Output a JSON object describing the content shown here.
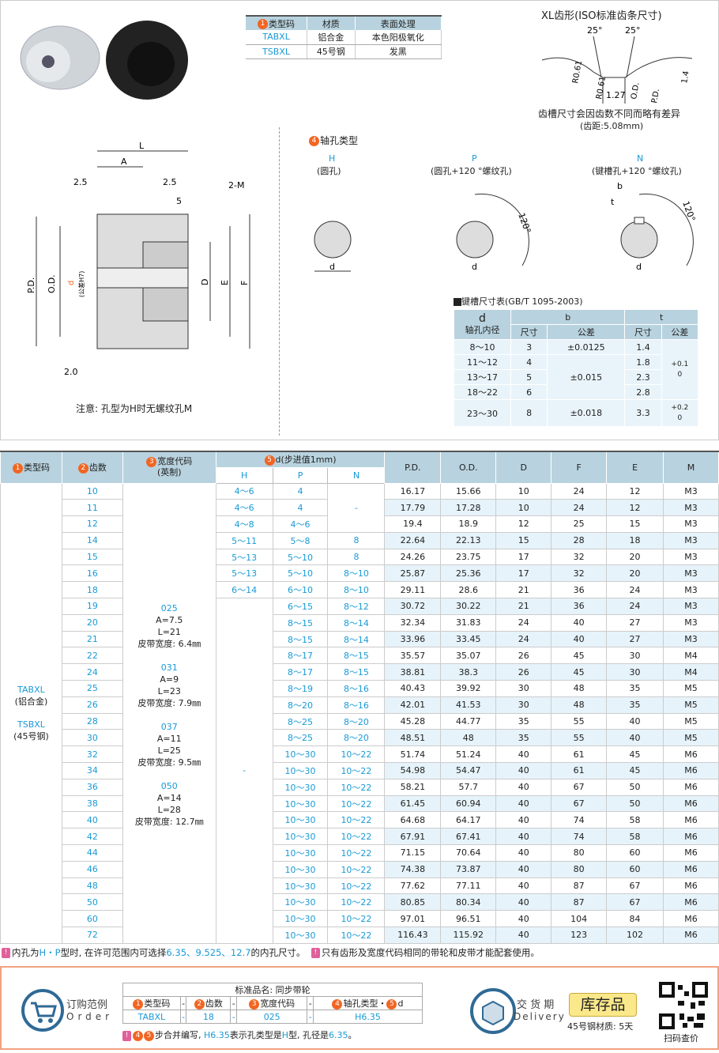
{
  "materials": {
    "headers": [
      "类型码",
      "材质",
      "表面处理"
    ],
    "rows": [
      [
        "TABXL",
        "铝合金",
        "本色阳极氧化"
      ],
      [
        "TSBXL",
        "45号钢",
        "发黑"
      ]
    ]
  },
  "tooth": {
    "title": "XL齿形(ISO标准齿条尺寸)",
    "angle1": "25°",
    "angle2": "25°",
    "r1": "R0.61",
    "r2": "R0.61",
    "w": "1.27",
    "od": "O.D.",
    "pd": "P.D.",
    "h": "1.4",
    "note1": "齿槽尺寸会因齿数不同而略有差异",
    "note2": "(齿距:5.08mm)"
  },
  "drawing": {
    "L": "L",
    "A": "A",
    "d1": "2.5",
    "d2": "2.5",
    "d3": "5",
    "m": "2-M",
    "pd": "P.D.",
    "od": "O.D.",
    "d": "d",
    "tol": "(公差H7)",
    "D": "D",
    "E": "E",
    "F": "F",
    "r": "2.0",
    "note": "注意: 孔型为H时无螺纹孔M"
  },
  "bore": {
    "title": "轴孔类型",
    "types": [
      {
        "code": "H",
        "desc": "(圆孔)"
      },
      {
        "code": "P",
        "desc": "(圆孔+120 °螺纹孔)"
      },
      {
        "code": "N",
        "desc": "(键槽孔+120 °螺纹孔)"
      }
    ],
    "angle": "120°",
    "d": "d",
    "b": "b",
    "t": "t"
  },
  "keyway": {
    "title": "键槽尺寸表(GB/T 1095-2003)",
    "h_d": "d",
    "h_d2": "轴孔内径",
    "h_b": "b",
    "h_t": "t",
    "h_size": "尺寸",
    "h_tol": "公差",
    "rows": [
      [
        "8～10",
        "3",
        "±0.0125",
        "1.4"
      ],
      [
        "11～12",
        "4",
        "",
        "1.8"
      ],
      [
        "13～17",
        "5",
        "±0.015",
        "2.3"
      ],
      [
        "18～22",
        "6",
        "",
        "2.8"
      ],
      [
        "23～30",
        "8",
        "±0.018",
        "3.3"
      ]
    ],
    "b_tol_mid": "±0.015",
    "t_tol1a": "+0.1",
    "t_tol1b": "0",
    "t_tol2a": "+0.2",
    "t_tol2b": "0"
  },
  "table": {
    "headers": {
      "type": "类型码",
      "teeth": "齿数",
      "width": "宽度代码",
      "width2": "(英制)",
      "d": "d(步进值1mm)",
      "H": "H",
      "P": "P",
      "N": "N",
      "pd": "P.D.",
      "od": "O.D.",
      "D": "D",
      "F": "F",
      "E": "E",
      "M": "M"
    },
    "type_text": [
      "TABXL",
      "(铝合金)",
      "TSBXL",
      "(45号钢)"
    ],
    "width_blocks": [
      [
        "025",
        "A=7.5",
        "L=21",
        "皮带宽度: 6.4㎜"
      ],
      [
        "031",
        "A=9",
        "L=23",
        "皮带宽度: 7.9㎜"
      ],
      [
        "037",
        "A=11",
        "L=25",
        "皮带宽度: 9.5㎜"
      ],
      [
        "050",
        "A=14",
        "L=28",
        "皮带宽度: 12.7㎜"
      ]
    ],
    "dash": "-",
    "rows": [
      [
        "10",
        "4～6",
        "4",
        "",
        "16.17",
        "15.66",
        "10",
        "24",
        "12",
        "M3"
      ],
      [
        "11",
        "4～6",
        "4",
        "",
        "17.79",
        "17.28",
        "10",
        "24",
        "12",
        "M3"
      ],
      [
        "12",
        "4～8",
        "4～6",
        "",
        "19.4",
        "18.9",
        "12",
        "25",
        "15",
        "M3"
      ],
      [
        "14",
        "5～11",
        "5～8",
        "8",
        "22.64",
        "22.13",
        "15",
        "28",
        "18",
        "M3"
      ],
      [
        "15",
        "5～13",
        "5～10",
        "8",
        "24.26",
        "23.75",
        "17",
        "32",
        "20",
        "M3"
      ],
      [
        "16",
        "5～13",
        "5～10",
        "8～10",
        "25.87",
        "25.36",
        "17",
        "32",
        "20",
        "M3"
      ],
      [
        "18",
        "6～14",
        "6～10",
        "8～10",
        "29.11",
        "28.6",
        "21",
        "36",
        "24",
        "M3"
      ],
      [
        "19",
        "",
        "6～15",
        "8～12",
        "30.72",
        "30.22",
        "21",
        "36",
        "24",
        "M3"
      ],
      [
        "20",
        "",
        "8～15",
        "8～14",
        "32.34",
        "31.83",
        "24",
        "40",
        "27",
        "M3"
      ],
      [
        "21",
        "",
        "8～15",
        "8～14",
        "33.96",
        "33.45",
        "24",
        "40",
        "27",
        "M3"
      ],
      [
        "22",
        "",
        "8～17",
        "8～15",
        "35.57",
        "35.07",
        "26",
        "45",
        "30",
        "M4"
      ],
      [
        "24",
        "",
        "8～17",
        "8～15",
        "38.81",
        "38.3",
        "26",
        "45",
        "30",
        "M4"
      ],
      [
        "25",
        "",
        "8～19",
        "8～16",
        "40.43",
        "39.92",
        "30",
        "48",
        "35",
        "M5"
      ],
      [
        "26",
        "",
        "8～20",
        "8～16",
        "42.01",
        "41.53",
        "30",
        "48",
        "35",
        "M5"
      ],
      [
        "28",
        "",
        "8～25",
        "8～20",
        "45.28",
        "44.77",
        "35",
        "55",
        "40",
        "M5"
      ],
      [
        "30",
        "",
        "8～25",
        "8～20",
        "48.51",
        "48",
        "35",
        "55",
        "40",
        "M5"
      ],
      [
        "32",
        "",
        "10～30",
        "10～22",
        "51.74",
        "51.24",
        "40",
        "61",
        "45",
        "M6"
      ],
      [
        "34",
        "",
        "10～30",
        "10～22",
        "54.98",
        "54.47",
        "40",
        "61",
        "45",
        "M6"
      ],
      [
        "36",
        "",
        "10～30",
        "10～22",
        "58.21",
        "57.7",
        "40",
        "67",
        "50",
        "M6"
      ],
      [
        "38",
        "",
        "10～30",
        "10～22",
        "61.45",
        "60.94",
        "40",
        "67",
        "50",
        "M6"
      ],
      [
        "40",
        "",
        "10～30",
        "10～22",
        "64.68",
        "64.17",
        "40",
        "74",
        "58",
        "M6"
      ],
      [
        "42",
        "",
        "10～30",
        "10～22",
        "67.91",
        "67.41",
        "40",
        "74",
        "58",
        "M6"
      ],
      [
        "44",
        "",
        "10～30",
        "10～22",
        "71.15",
        "70.64",
        "40",
        "80",
        "60",
        "M6"
      ],
      [
        "46",
        "",
        "10～30",
        "10～22",
        "74.38",
        "73.87",
        "40",
        "80",
        "60",
        "M6"
      ],
      [
        "48",
        "",
        "10～30",
        "10～22",
        "77.62",
        "77.11",
        "40",
        "87",
        "67",
        "M6"
      ],
      [
        "50",
        "",
        "10～30",
        "10～22",
        "80.85",
        "80.34",
        "40",
        "87",
        "67",
        "M6"
      ],
      [
        "60",
        "",
        "10～30",
        "10～22",
        "97.01",
        "96.51",
        "40",
        "104",
        "84",
        "M6"
      ],
      [
        "72",
        "",
        "10～30",
        "10～22",
        "116.43",
        "115.92",
        "40",
        "123",
        "102",
        "M6"
      ]
    ]
  },
  "notes": {
    "n1a": "内孔为",
    "n1b": "H・P",
    "n1c": "型时, 在许可范围内可选择",
    "n1d": "6.35、9.525、12.7",
    "n1e": "的内孔尺寸。",
    "n2": "只有齿形及宽度代码相同的带轮和皮带才能配套使用。"
  },
  "order": {
    "label_cn": "订购范例",
    "label_en": "Order",
    "std_name": "标准品名: 同步带轮",
    "h1": "类型码",
    "h2": "齿数",
    "h3": "宽度代码",
    "h4": "轴孔类型・",
    "h5": "d",
    "v1": "TABXL",
    "v2": "18",
    "v3": "025",
    "v4": "H6.35",
    "dash": "-",
    "note_a": "步合并编写, ",
    "note_b": "H6.35",
    "note_c": "表示孔类型是",
    "note_d": "H",
    "note_e": "型, 孔径是",
    "note_f": "6.35",
    "note_g": "。"
  },
  "delivery": {
    "label_cn": "交 货 期",
    "label_en": "Delivery",
    "badge": "库存品",
    "steel": "45号钢材质: 5天",
    "qr": "扫码查价"
  },
  "colors": {
    "accent": "#1a9ad6",
    "header": "#b8d3df",
    "badge": "#f26522"
  }
}
